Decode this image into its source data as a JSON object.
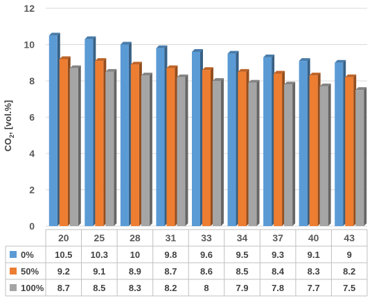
{
  "chart_data": {
    "type": "bar",
    "xlabel": "",
    "ylabel": "CO",
    "ylabel_sub": "2",
    "ylabel_suffix": ", [vol.%]",
    "ylim": [
      0,
      12
    ],
    "yticks": [
      0,
      2,
      4,
      6,
      8,
      10,
      12
    ],
    "grid": true,
    "legend_placement": "data-table-left",
    "style": "3d-clustered-column-with-data-table",
    "categories": [
      "20",
      "25",
      "28",
      "31",
      "33",
      "34",
      "37",
      "40",
      "43"
    ],
    "series": [
      {
        "name": "0%",
        "color": "#5b9bd5",
        "values": [
          10.5,
          10.3,
          10,
          9.8,
          9.6,
          9.5,
          9.3,
          9.1,
          9
        ]
      },
      {
        "name": "50%",
        "color": "#ed7d31",
        "values": [
          9.2,
          9.1,
          8.9,
          8.7,
          8.6,
          8.5,
          8.4,
          8.3,
          8.2
        ]
      },
      {
        "name": "100%",
        "color": "#a5a5a5",
        "values": [
          8.7,
          8.5,
          8.3,
          8.2,
          8,
          7.9,
          7.8,
          7.7,
          7.5
        ]
      }
    ]
  }
}
